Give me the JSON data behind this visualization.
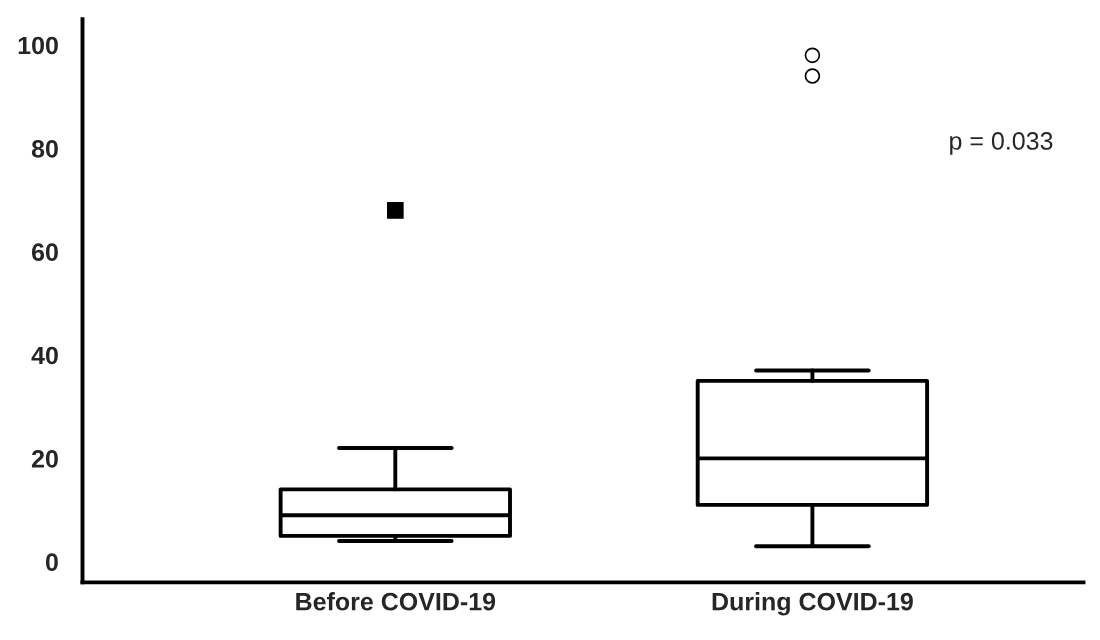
{
  "chart_data": {
    "type": "box",
    "categories": [
      "Before COVID-19",
      "During COVID-19"
    ],
    "series": [
      {
        "marker": "square",
        "color": "#000000",
        "boxes": [
          {
            "low": 4,
            "q1": 5,
            "median": 9,
            "q3": 14,
            "high": 22,
            "outliers": [
              68
            ]
          },
          null
        ]
      },
      {
        "marker": "circle",
        "color": "#000000",
        "boxes": [
          null,
          {
            "low": 3,
            "q1": 11,
            "median": 20,
            "q3": 35,
            "high": 37,
            "outliers": [
              94,
              98
            ]
          }
        ]
      }
    ],
    "ylim": [
      -4,
      105
    ],
    "yticks": [
      0,
      20,
      40,
      60,
      80,
      100
    ],
    "grid": false,
    "legend": false,
    "annotations": [
      "p = 0.033"
    ]
  }
}
